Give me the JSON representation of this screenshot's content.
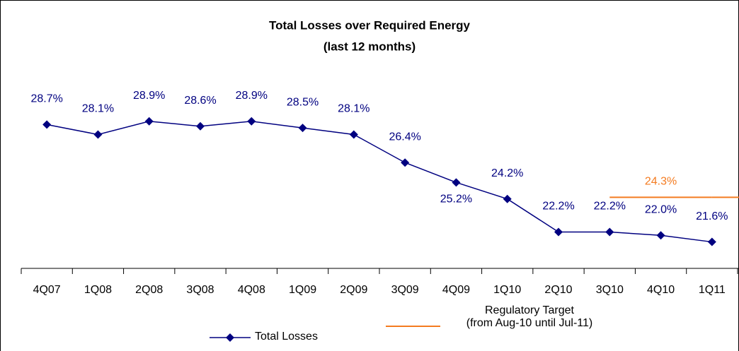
{
  "chart_data": {
    "type": "line",
    "title": "Total Losses over Required Energy",
    "subtitle": "(last 12 months)",
    "categories": [
      "4Q07",
      "1Q08",
      "2Q08",
      "3Q08",
      "4Q08",
      "1Q09",
      "2Q09",
      "3Q09",
      "4Q09",
      "1Q10",
      "2Q10",
      "3Q10",
      "4Q10",
      "1Q11"
    ],
    "ylim": [
      20,
      35
    ],
    "series": [
      {
        "name": "Total Losses",
        "color": "#000080",
        "values": [
          28.7,
          28.1,
          28.9,
          28.6,
          28.9,
          28.5,
          28.1,
          26.4,
          25.2,
          24.2,
          22.2,
          22.2,
          22.0,
          21.6
        ],
        "value_labels": [
          "28.7%",
          "28.1%",
          "28.9%",
          "28.6%",
          "28.9%",
          "28.5%",
          "28.1%",
          "26.4%",
          "25.2%",
          "24.2%",
          "22.2%",
          "22.2%",
          "22.0%",
          "21.6%"
        ]
      },
      {
        "name": "Regulatory Target\n(from Aug-10 until Jul-11)",
        "color": "#f47b20",
        "values": [
          null,
          null,
          null,
          null,
          null,
          null,
          null,
          null,
          null,
          null,
          null,
          24.3,
          24.3,
          24.3
        ],
        "value_labels": [
          null,
          null,
          null,
          null,
          null,
          null,
          null,
          null,
          null,
          null,
          null,
          null,
          "24.3%",
          null
        ]
      }
    ]
  }
}
